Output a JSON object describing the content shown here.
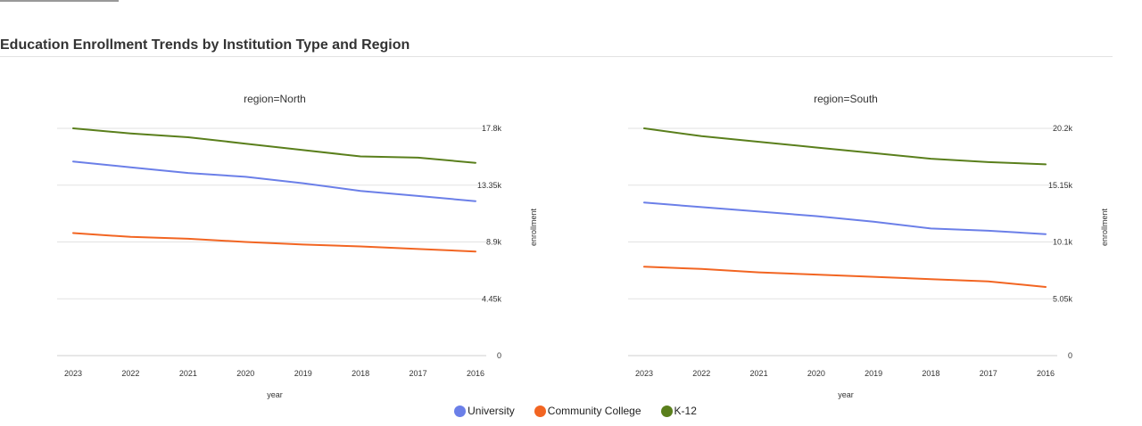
{
  "title": "Education Enrollment Trends by Institution Type and Region",
  "colors": {
    "University": "#6b7fe8",
    "Community College": "#f26522",
    "K-12": "#5a7f1c"
  },
  "legend": [
    {
      "label": "University",
      "color": "#6b7fe8"
    },
    {
      "label": "Community College",
      "color": "#f26522"
    },
    {
      "label": "K-12",
      "color": "#5a7f1c"
    }
  ],
  "chart_data": [
    {
      "type": "line",
      "title": "region=North",
      "xlabel": "year",
      "ylabel": "enrollment",
      "categories": [
        "2023",
        "2022",
        "2021",
        "2020",
        "2019",
        "2018",
        "2017",
        "2016"
      ],
      "ylim": [
        0,
        17800
      ],
      "yticks": [
        "0",
        "4.45k",
        "8.9k",
        "13.35k",
        "17.8k"
      ],
      "series": [
        {
          "name": "University",
          "values": [
            15200,
            14750,
            14300,
            14000,
            13500,
            12900,
            12500,
            12100
          ]
        },
        {
          "name": "Community College",
          "values": [
            9600,
            9300,
            9150,
            8900,
            8700,
            8550,
            8350,
            8150
          ]
        },
        {
          "name": "K-12",
          "values": [
            17800,
            17400,
            17100,
            16600,
            16100,
            15600,
            15500,
            15100
          ]
        }
      ]
    },
    {
      "type": "line",
      "title": "region=South",
      "xlabel": "year",
      "ylabel": "enrollment",
      "categories": [
        "2023",
        "2022",
        "2021",
        "2020",
        "2019",
        "2018",
        "2017",
        "2016"
      ],
      "ylim": [
        0,
        20200
      ],
      "yticks": [
        "0",
        "5.05k",
        "10.1k",
        "15.15k",
        "20.2k"
      ],
      "series": [
        {
          "name": "University",
          "values": [
            13600,
            13200,
            12800,
            12400,
            11900,
            11300,
            11100,
            10800
          ]
        },
        {
          "name": "Community College",
          "values": [
            7900,
            7700,
            7400,
            7200,
            7000,
            6800,
            6600,
            6100
          ]
        },
        {
          "name": "K-12",
          "values": [
            20200,
            19500,
            19000,
            18500,
            18000,
            17500,
            17200,
            17000
          ]
        }
      ]
    }
  ]
}
